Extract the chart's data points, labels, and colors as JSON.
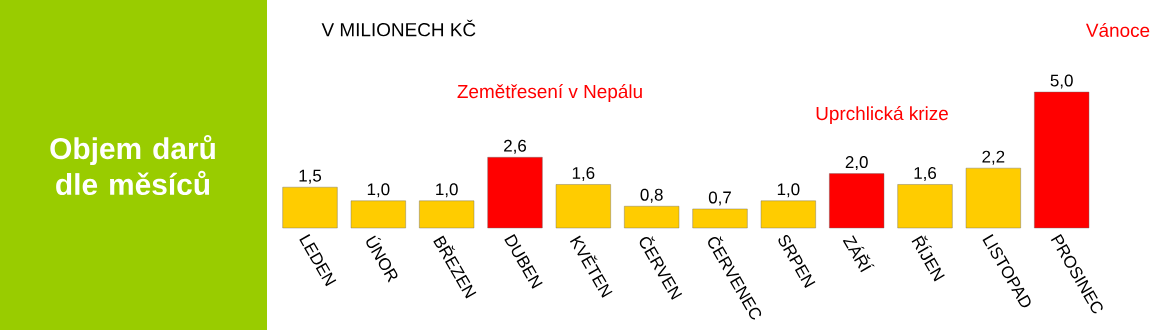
{
  "chart_data": {
    "type": "bar",
    "title": "Objem darů dle měsíců",
    "subtitle": "V MILIONECH KČ",
    "categories": [
      "LEDEN",
      "ÚNOR",
      "BŘEZEN",
      "DUBEN",
      "KVĚTEN",
      "ČERVEN",
      "ČERVENEC",
      "SRPEN",
      "ZÁŘÍ",
      "ŘÍJEN",
      "LISTOPAD",
      "PROSINEC"
    ],
    "values": [
      1.5,
      1.0,
      1.0,
      2.6,
      1.6,
      0.8,
      0.7,
      1.0,
      2.0,
      1.6,
      2.2,
      5.0
    ],
    "value_labels": [
      "1,5",
      "1,0",
      "1,0",
      "2,6",
      "1,6",
      "0,8",
      "0,7",
      "1,0",
      "2,0",
      "1,6",
      "2,2",
      "5,0"
    ],
    "colors": [
      "#ffcc00",
      "#ffcc00",
      "#ffcc00",
      "#ff0000",
      "#ffcc00",
      "#ffcc00",
      "#ffcc00",
      "#ffcc00",
      "#ff0000",
      "#ffcc00",
      "#ffcc00",
      "#ff0000"
    ],
    "annotations": [
      "Zemětřesení v Nepálu",
      "Uprchlická krize",
      "Vánoce"
    ]
  }
}
